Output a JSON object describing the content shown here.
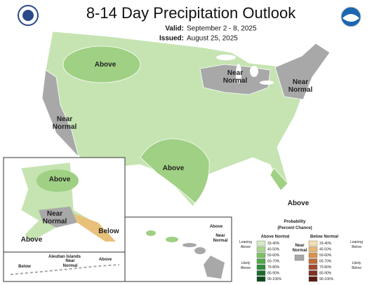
{
  "header": {
    "title": "8-14 Day Precipitation Outlook",
    "valid_label": "Valid:",
    "valid": "September 2 - 8, 2025",
    "issued_label": "Issued:",
    "issued": "August 25, 2025"
  },
  "map_labels": [
    {
      "lines": [
        "Above"
      ]
    },
    {
      "lines": [
        "Near",
        "Normal"
      ]
    },
    {
      "lines": [
        "Near",
        "Normal"
      ]
    },
    {
      "lines": [
        "Near",
        "Normal"
      ]
    },
    {
      "lines": [
        "Above"
      ]
    },
    {
      "lines": [
        "Above"
      ]
    },
    {
      "lines": [
        "Above"
      ]
    },
    {
      "lines": [
        "Near",
        "Normal"
      ]
    },
    {
      "lines": [
        "Below"
      ]
    },
    {
      "lines": [
        "Above"
      ]
    },
    {
      "lines": [
        "Aleutian Islands"
      ]
    },
    {
      "lines": [
        "Below"
      ]
    },
    {
      "lines": [
        "Near",
        "Normal"
      ]
    },
    {
      "lines": [
        "Above"
      ]
    },
    {
      "lines": [
        "Above"
      ]
    },
    {
      "lines": [
        "Near",
        "Normal"
      ]
    }
  ],
  "legend": {
    "title_lines": [
      "Probability",
      "(Percent Chance)"
    ],
    "above_heading": "Above Normal",
    "below_heading": "Below Normal",
    "near_lines": [
      "Near",
      "Normal"
    ],
    "leaning_above": [
      "Leaning",
      "Above"
    ],
    "likely_above": [
      "Likely",
      "Above"
    ],
    "leaning_below": [
      "Leaning",
      "Below"
    ],
    "likely_below": [
      "Likely",
      "Below"
    ],
    "above_bins": [
      "33-40%",
      "40-50%",
      "50-60%",
      "60-70%",
      "70-80%",
      "80-90%",
      "90-100%"
    ],
    "below_bins": [
      "33-40%",
      "40-50%",
      "50-60%",
      "60-70%",
      "70-80%",
      "80-90%",
      "90-100%"
    ],
    "above_colors": [
      "#d4ecc5",
      "#a8d68e",
      "#7dc060",
      "#4ea846",
      "#2e8b3a",
      "#1d6b2c",
      "#0e4a1e"
    ],
    "below_colors": [
      "#f5deb0",
      "#e8b873",
      "#d8944a",
      "#c06a38",
      "#a04a2c",
      "#803020",
      "#5a1c10"
    ],
    "near_color": "#a8a8a8"
  }
}
